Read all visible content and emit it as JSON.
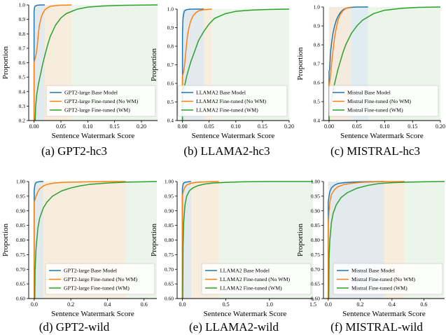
{
  "colors": {
    "base": "#1f77b4",
    "no_wm": "#ff7f0e",
    "wm": "#2ca02c",
    "shade_no_wm": "#fbe9d7",
    "shade_wm": "#e6f2e1",
    "shade_base": "#dbe8f4"
  },
  "chart_data": [
    {
      "type": "line",
      "caption": "(a) GPT2-hc3",
      "xlabel": "Sentence Watermark Score",
      "ylabel": "Proportion",
      "xlim": [
        -0.01,
        0.23
      ],
      "ylim": [
        0.2,
        1.0
      ],
      "xticks": [
        0.0,
        0.05,
        0.1,
        0.15,
        0.2
      ],
      "xtick_labels": [
        "0.00",
        "0.05",
        "0.10",
        "0.15",
        "0.20"
      ],
      "yticks": [
        0.2,
        0.3,
        0.4,
        0.5,
        0.6,
        0.7,
        0.8,
        0.9,
        1.0
      ],
      "ytick_labels": [
        "0.2",
        "0.3",
        "0.4",
        "0.5",
        "0.6",
        "0.7",
        "0.8",
        "0.9",
        "1.0"
      ],
      "legend": [
        "GPT2-large Base Model",
        "GPT2-large Fine-tuned (No WM)",
        "GPT2-large Fine-tuned (WM)"
      ],
      "series": [
        {
          "name": "GPT2-large Base Model",
          "key": "base",
          "max": 0.02,
          "x": [
            0,
            0,
            0.0005,
            0.001,
            0.002,
            0.004,
            0.006,
            0.01,
            0.015,
            0.02
          ],
          "y": [
            0.2,
            0.955,
            0.975,
            0.985,
            0.99,
            0.995,
            0.998,
            0.999,
            1.0,
            1.0
          ]
        },
        {
          "name": "GPT2-large Fine-tuned (No WM)",
          "key": "no_wm",
          "max": 0.07,
          "x": [
            0,
            0,
            0.002,
            0.004,
            0.006,
            0.008,
            0.01,
            0.013,
            0.016,
            0.02,
            0.025,
            0.03,
            0.04,
            0.05,
            0.06,
            0.07
          ],
          "y": [
            0.2,
            0.6,
            0.63,
            0.66,
            0.72,
            0.8,
            0.86,
            0.91,
            0.94,
            0.965,
            0.98,
            0.99,
            0.995,
            0.998,
            0.999,
            1.0
          ]
        },
        {
          "name": "GPT2-large Fine-tuned (WM)",
          "key": "wm",
          "max": 0.23,
          "x": [
            0.002,
            0.003,
            0.005,
            0.008,
            0.012,
            0.016,
            0.02,
            0.025,
            0.03,
            0.04,
            0.05,
            0.06,
            0.08,
            0.1,
            0.13,
            0.16,
            0.2,
            0.23
          ],
          "y": [
            0.2,
            0.3,
            0.38,
            0.45,
            0.52,
            0.59,
            0.65,
            0.72,
            0.78,
            0.86,
            0.91,
            0.94,
            0.97,
            0.985,
            0.993,
            0.997,
            0.999,
            1.0
          ]
        }
      ]
    },
    {
      "type": "line",
      "caption": "(b) LLAMA2-hc3",
      "xlabel": "Sentence Watermark Score",
      "ylabel": "Proportion",
      "xlim": [
        -0.01,
        0.2
      ],
      "ylim": [
        0.4,
        1.0
      ],
      "xticks": [
        0.0,
        0.05,
        0.1,
        0.15,
        0.2
      ],
      "xtick_labels": [
        "0.00",
        "0.05",
        "0.10",
        "0.15",
        "0.20"
      ],
      "yticks": [
        0.4,
        0.5,
        0.6,
        0.7,
        0.8,
        0.9,
        1.0
      ],
      "ytick_labels": [
        "0.4",
        "0.5",
        "0.6",
        "0.7",
        "0.8",
        "0.9",
        "1.0"
      ],
      "legend": [
        "LLAMA2 Base Model",
        "LLAMA2 Fine-tuned (No WM)",
        "LLAMA2 Fine-tuned (WM)"
      ],
      "series": [
        {
          "name": "LLAMA2 Base Model",
          "key": "base",
          "max": 0.04,
          "x": [
            0,
            0,
            0.0005,
            0.001,
            0.002,
            0.003,
            0.005,
            0.008,
            0.012,
            0.02,
            0.03,
            0.04
          ],
          "y": [
            0.4,
            0.86,
            0.92,
            0.95,
            0.97,
            0.985,
            0.993,
            0.997,
            0.999,
            1.0,
            1.0,
            1.0
          ]
        },
        {
          "name": "LLAMA2 Fine-tuned (No WM)",
          "key": "no_wm",
          "max": 0.055,
          "x": [
            0,
            0,
            0.002,
            0.004,
            0.006,
            0.008,
            0.01,
            0.013,
            0.016,
            0.02,
            0.025,
            0.03,
            0.04,
            0.055
          ],
          "y": [
            0.4,
            0.64,
            0.66,
            0.7,
            0.76,
            0.82,
            0.87,
            0.91,
            0.94,
            0.965,
            0.98,
            0.99,
            0.997,
            1.0
          ]
        },
        {
          "name": "LLAMA2 Fine-tuned (WM)",
          "key": "wm",
          "max": 0.2,
          "x": [
            0,
            0,
            0.002,
            0.005,
            0.008,
            0.012,
            0.016,
            0.02,
            0.025,
            0.03,
            0.04,
            0.05,
            0.06,
            0.08,
            0.1,
            0.13,
            0.16,
            0.2
          ],
          "y": [
            0.4,
            0.56,
            0.57,
            0.6,
            0.64,
            0.68,
            0.72,
            0.75,
            0.79,
            0.83,
            0.88,
            0.92,
            0.95,
            0.975,
            0.988,
            0.995,
            0.998,
            1.0
          ]
        }
      ]
    },
    {
      "type": "line",
      "caption": "(c) MISTRAL-hc3",
      "xlabel": "Sentence Watermark Score",
      "ylabel": "Proportion",
      "xlim": [
        -0.01,
        0.2
      ],
      "ylim": [
        0.4,
        1.0
      ],
      "xticks": [
        0.0,
        0.05,
        0.1,
        0.15,
        0.2
      ],
      "xtick_labels": [
        "0.00",
        "0.05",
        "0.10",
        "0.15",
        "0.20"
      ],
      "yticks": [
        0.4,
        0.5,
        0.6,
        0.7,
        0.8,
        0.9,
        1.0
      ],
      "ytick_labels": [
        "0.4",
        "0.5",
        "0.6",
        "0.7",
        "0.8",
        "0.9",
        "1.0"
      ],
      "legend": [
        "Mistral Base Model",
        "Mistral Fine-tuned (No WM)",
        "Mistral Fine-tuned (WM)"
      ],
      "series": [
        {
          "name": "Mistral Base Model",
          "key": "base",
          "max": 0.07,
          "x": [
            0,
            0,
            0.001,
            0.002,
            0.003,
            0.005,
            0.007,
            0.01,
            0.013,
            0.016,
            0.02,
            0.025,
            0.03,
            0.04,
            0.05,
            0.07
          ],
          "y": [
            0.4,
            0.66,
            0.67,
            0.72,
            0.77,
            0.82,
            0.86,
            0.9,
            0.93,
            0.95,
            0.97,
            0.985,
            0.993,
            0.998,
            1.0,
            1.0
          ]
        },
        {
          "name": "Mistral Fine-tuned (No WM)",
          "key": "no_wm",
          "max": 0.04,
          "x": [
            0,
            0,
            0.002,
            0.004,
            0.006,
            0.008,
            0.01,
            0.013,
            0.016,
            0.02,
            0.025,
            0.03,
            0.035,
            0.04
          ],
          "y": [
            0.4,
            0.58,
            0.62,
            0.68,
            0.74,
            0.79,
            0.84,
            0.89,
            0.93,
            0.96,
            0.98,
            0.992,
            0.997,
            1.0
          ]
        },
        {
          "name": "Mistral Fine-tuned (WM)",
          "key": "wm",
          "max": 0.2,
          "x": [
            0,
            0,
            0.002,
            0.005,
            0.008,
            0.012,
            0.016,
            0.02,
            0.025,
            0.03,
            0.04,
            0.05,
            0.06,
            0.08,
            0.1,
            0.13,
            0.16,
            0.2
          ],
          "y": [
            0.4,
            0.45,
            0.47,
            0.52,
            0.57,
            0.62,
            0.67,
            0.71,
            0.76,
            0.8,
            0.86,
            0.9,
            0.93,
            0.965,
            0.983,
            0.993,
            0.998,
            1.0
          ]
        }
      ]
    },
    {
      "type": "line",
      "caption": "(d) GPT2-wild",
      "xlabel": "Sentence Watermark Score",
      "ylabel": "Proportion",
      "xlim": [
        -0.03,
        0.67
      ],
      "ylim": [
        0.6,
        1.0
      ],
      "xticks": [
        0.0,
        0.2,
        0.4,
        0.6
      ],
      "xtick_labels": [
        "0.0",
        "0.2",
        "0.4",
        "0.6"
      ],
      "yticks": [
        0.6,
        0.65,
        0.7,
        0.75,
        0.8,
        0.85,
        0.9,
        0.95,
        1.0
      ],
      "ytick_labels": [
        "0.60",
        "0.65",
        "0.70",
        "0.75",
        "0.80",
        "0.85",
        "0.90",
        "0.95",
        "1.00"
      ],
      "legend": [
        "GPT2-large Base Model",
        "GPT2-large Fine-tuned (No WM)",
        "GPT2-large Fine-tuned (WM)"
      ],
      "series": [
        {
          "name": "GPT2-large Base Model",
          "key": "base",
          "max": 0.05,
          "x": [
            0,
            0,
            0.003,
            0.006,
            0.01,
            0.015,
            0.025,
            0.035,
            0.05
          ],
          "y": [
            0.6,
            0.97,
            0.985,
            0.992,
            0.996,
            0.998,
            0.999,
            1.0,
            1.0
          ]
        },
        {
          "name": "GPT2-large Fine-tuned (No WM)",
          "key": "no_wm",
          "max": 0.5,
          "x": [
            0,
            0,
            0.01,
            0.02,
            0.03,
            0.05,
            0.07,
            0.1,
            0.15,
            0.2,
            0.3,
            0.4,
            0.5
          ],
          "y": [
            0.6,
            0.93,
            0.95,
            0.965,
            0.975,
            0.985,
            0.99,
            0.994,
            0.997,
            0.998,
            0.999,
            1.0,
            1.0
          ]
        },
        {
          "name": "GPT2-large Fine-tuned (WM)",
          "key": "wm",
          "max": 0.67,
          "x": [
            0.003,
            0.005,
            0.01,
            0.02,
            0.03,
            0.05,
            0.07,
            0.1,
            0.15,
            0.2,
            0.25,
            0.3,
            0.4,
            0.5,
            0.6,
            0.67
          ],
          "y": [
            0.6,
            0.7,
            0.77,
            0.84,
            0.875,
            0.91,
            0.93,
            0.95,
            0.968,
            0.978,
            0.985,
            0.99,
            0.995,
            0.998,
            0.999,
            1.0
          ]
        }
      ]
    },
    {
      "type": "line",
      "caption": "(e) LLAMA2-wild",
      "xlabel": "Sentence Watermark Score",
      "ylabel": "Proportion",
      "xlim": [
        -0.06,
        1.5
      ],
      "ylim": [
        0.6,
        1.0
      ],
      "xticks": [
        0.0,
        0.5,
        1.0,
        1.5
      ],
      "xtick_labels": [
        "0.0",
        "0.5",
        "1.0",
        "1.5"
      ],
      "yticks": [
        0.6,
        0.65,
        0.7,
        0.75,
        0.8,
        0.85,
        0.9,
        0.95,
        1.0
      ],
      "ytick_labels": [
        "0.60",
        "0.65",
        "0.70",
        "0.75",
        "0.80",
        "0.85",
        "0.90",
        "0.95",
        "1.00"
      ],
      "legend": [
        "LLAMA2 Base Model",
        "LLAMA2 Fine-tuned (No WM)",
        "LLAMA2 Fine-tuned (WM)"
      ],
      "series": [
        {
          "name": "LLAMA2 Base Model",
          "key": "base",
          "max": 0.1,
          "x": [
            0,
            0,
            0.005,
            0.01,
            0.02,
            0.04,
            0.07,
            0.1
          ],
          "y": [
            0.6,
            0.975,
            0.985,
            0.992,
            0.996,
            0.998,
            0.999,
            1.0
          ]
        },
        {
          "name": "LLAMA2 Fine-tuned (No WM)",
          "key": "no_wm",
          "max": 0.42,
          "x": [
            0,
            0,
            0.01,
            0.02,
            0.04,
            0.06,
            0.1,
            0.15,
            0.2,
            0.3,
            0.42
          ],
          "y": [
            0.6,
            0.95,
            0.965,
            0.975,
            0.985,
            0.99,
            0.994,
            0.997,
            0.998,
            0.999,
            1.0
          ]
        },
        {
          "name": "LLAMA2 Fine-tuned (WM)",
          "key": "wm",
          "max": 1.5,
          "x": [
            0.005,
            0.008,
            0.015,
            0.03,
            0.05,
            0.08,
            0.12,
            0.18,
            0.25,
            0.35,
            0.5,
            0.7,
            1.0,
            1.3,
            1.5
          ],
          "y": [
            0.6,
            0.78,
            0.86,
            0.92,
            0.95,
            0.968,
            0.978,
            0.986,
            0.991,
            0.995,
            0.997,
            0.999,
            1.0,
            1.0,
            1.0
          ]
        }
      ]
    },
    {
      "type": "line",
      "caption": "(f) MISTRAL-wild",
      "xlabel": "Sentence Watermark Score",
      "ylabel": "Proportion",
      "xlim": [
        -0.03,
        0.73
      ],
      "ylim": [
        0.6,
        1.0
      ],
      "xticks": [
        0.0,
        0.2,
        0.4,
        0.6
      ],
      "xtick_labels": [
        "0.0",
        "0.2",
        "0.4",
        "0.6"
      ],
      "yticks": [
        0.6,
        0.65,
        0.7,
        0.75,
        0.8,
        0.85,
        0.9,
        0.95,
        1.0
      ],
      "ytick_labels": [
        "0.60",
        "0.65",
        "0.70",
        "0.75",
        "0.80",
        "0.85",
        "0.90",
        "0.95",
        "1.00"
      ],
      "legend": [
        "Mistral Base Model",
        "Mistral Fine-tuned (No WM)",
        "Mistral Fine-tuned (WM)"
      ],
      "series": [
        {
          "name": "Mistral Base Model",
          "key": "base",
          "max": 0.35,
          "x": [
            0,
            0,
            0.005,
            0.01,
            0.02,
            0.04,
            0.06,
            0.1,
            0.15,
            0.2,
            0.35
          ],
          "y": [
            0.6,
            0.93,
            0.95,
            0.965,
            0.978,
            0.988,
            0.993,
            0.996,
            0.998,
            0.999,
            1.0
          ]
        },
        {
          "name": "Mistral Fine-tuned (No WM)",
          "key": "no_wm",
          "max": 0.48,
          "x": [
            0,
            0,
            0.005,
            0.01,
            0.02,
            0.04,
            0.06,
            0.1,
            0.15,
            0.2,
            0.3,
            0.48
          ],
          "y": [
            0.6,
            0.86,
            0.9,
            0.93,
            0.955,
            0.973,
            0.982,
            0.99,
            0.994,
            0.997,
            0.999,
            1.0
          ]
        },
        {
          "name": "Mistral Fine-tuned (WM)",
          "key": "wm",
          "max": 0.73,
          "x": [
            0.003,
            0.005,
            0.01,
            0.02,
            0.03,
            0.05,
            0.08,
            0.12,
            0.18,
            0.25,
            0.32,
            0.4,
            0.5,
            0.6,
            0.73
          ],
          "y": [
            0.6,
            0.74,
            0.8,
            0.86,
            0.89,
            0.92,
            0.945,
            0.962,
            0.977,
            0.987,
            0.993,
            0.996,
            0.998,
            0.999,
            1.0
          ]
        }
      ]
    }
  ]
}
